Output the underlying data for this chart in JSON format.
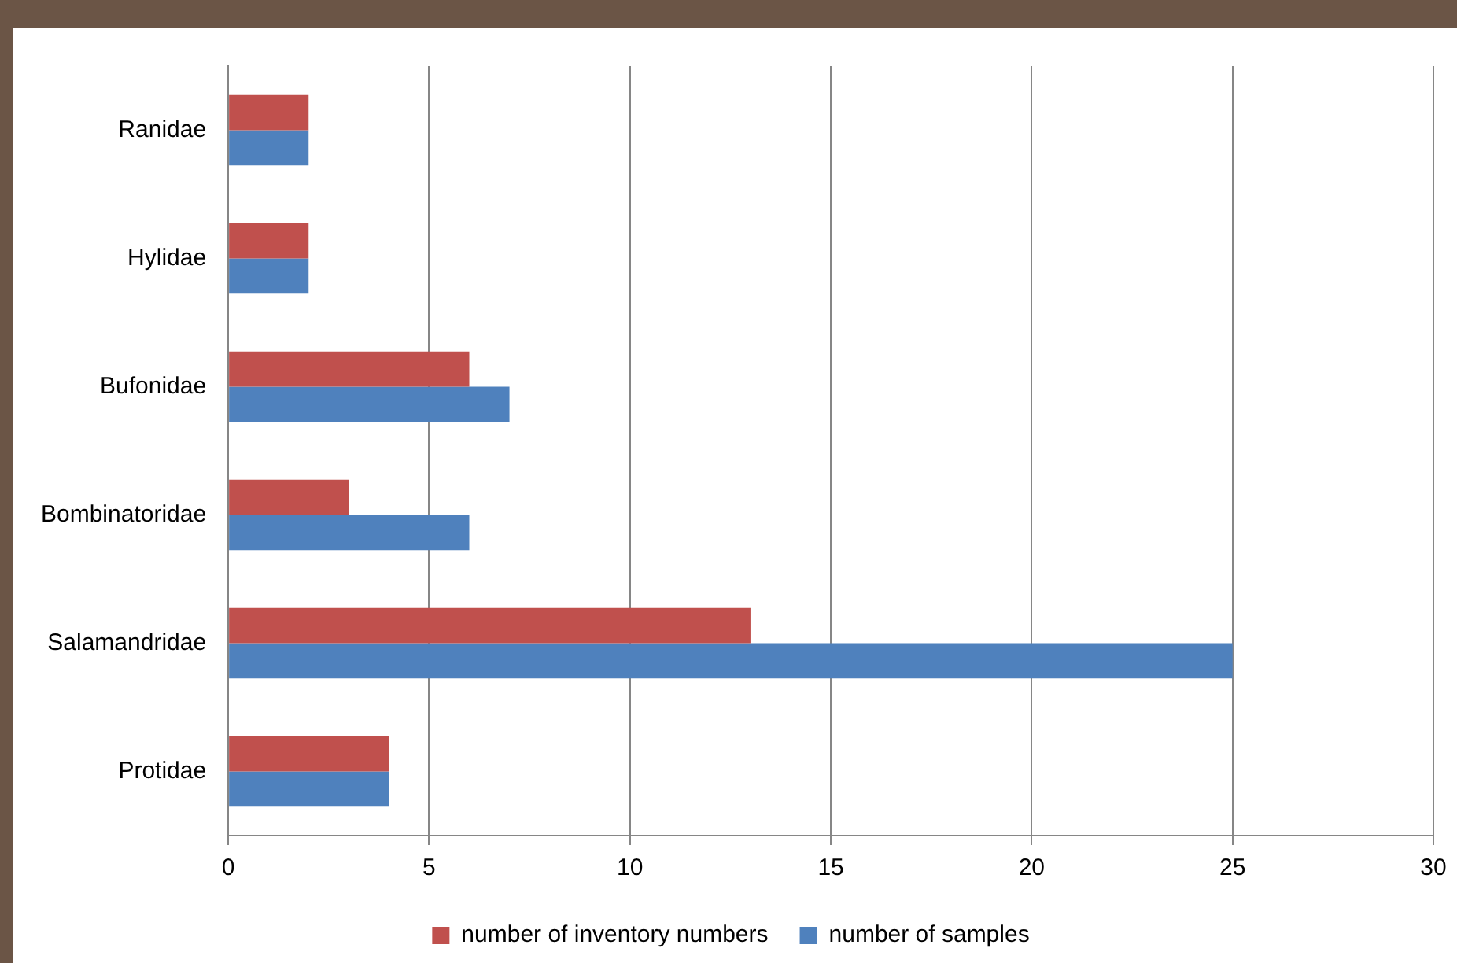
{
  "chart_data": {
    "type": "bar",
    "orientation": "horizontal",
    "categories": [
      "Ranidae",
      "Hylidae",
      "Bufonidae",
      "Bombinatoridae",
      "Salamandridae",
      "Protidae"
    ],
    "series": [
      {
        "name": "number of inventory numbers",
        "color": "#c0504d",
        "values": [
          2,
          2,
          6,
          3,
          13,
          4
        ]
      },
      {
        "name": "number of samples",
        "color": "#4f81bd",
        "values": [
          2,
          2,
          7,
          6,
          25,
          4
        ]
      }
    ],
    "xlim": [
      0,
      30
    ],
    "xticks": [
      0,
      5,
      10,
      15,
      20,
      25,
      30
    ],
    "grid": "x",
    "legend": "bottom"
  }
}
